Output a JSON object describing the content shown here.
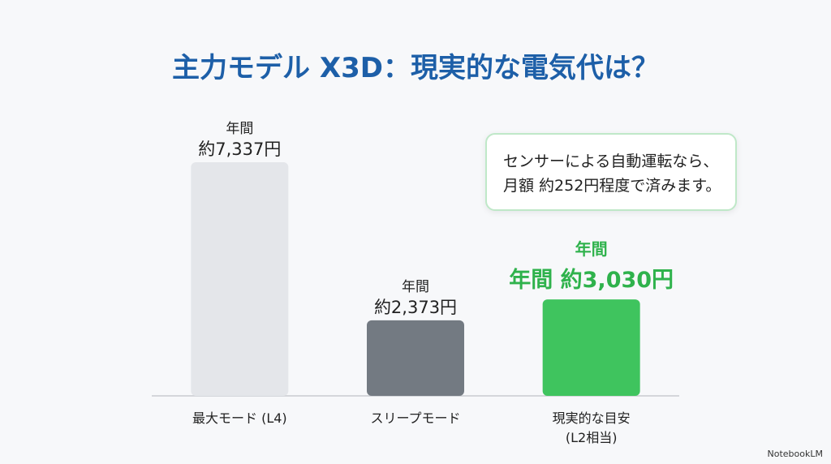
{
  "chart_data": {
    "type": "bar",
    "title": "主力モデル X3D：現実的な電気代は？",
    "categories": [
      "最大モード (L4)",
      "スリープモード",
      "現実的な目安\n(L2相当)"
    ],
    "values": [
      7337,
      2373,
      3030
    ],
    "value_label_headers": [
      "年間",
      "年間",
      "年間"
    ],
    "value_labels": [
      "約7,337円",
      "約2,373円",
      "年間 約3,030円"
    ],
    "value_label_colors": [
      "#222222",
      "#222222",
      "#2fb24c"
    ],
    "colors": [
      "#e4e6ea",
      "#737a82",
      "#3fc45e"
    ],
    "annotation": "センサーによる自動運転なら、\n月額 約252円程度で済みます。",
    "footer": "NotebookLM"
  }
}
